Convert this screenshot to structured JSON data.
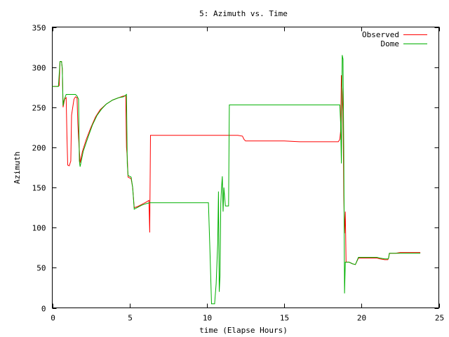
{
  "chart_data": {
    "type": "line",
    "title": "5: Azimuth vs. Time",
    "xlabel": "time (Elapse Hours)",
    "ylabel": "Azimuth",
    "xlim": [
      0,
      25
    ],
    "ylim": [
      0,
      350
    ],
    "xticks": [
      0,
      5,
      10,
      15,
      20,
      25
    ],
    "yticks": [
      0,
      50,
      100,
      150,
      200,
      250,
      300,
      350
    ],
    "grid": false,
    "legend": "top-right",
    "series": [
      {
        "name": "Observed",
        "color": "#ff0000",
        "points": [
          [
            0,
            276
          ],
          [
            0.35,
            276
          ],
          [
            0.45,
            277
          ],
          [
            0.5,
            307
          ],
          [
            0.6,
            307
          ],
          [
            0.65,
            298
          ],
          [
            0.7,
            250
          ],
          [
            0.8,
            260
          ],
          [
            0.9,
            262
          ],
          [
            0.95,
            215
          ],
          [
            1.0,
            178
          ],
          [
            1.1,
            177
          ],
          [
            1.2,
            183
          ],
          [
            1.25,
            240
          ],
          [
            1.4,
            260
          ],
          [
            1.5,
            263
          ],
          [
            1.6,
            262
          ],
          [
            1.65,
            230
          ],
          [
            1.7,
            212
          ],
          [
            1.8,
            181
          ],
          [
            1.95,
            195
          ],
          [
            2.2,
            210
          ],
          [
            2.5,
            225
          ],
          [
            2.8,
            238
          ],
          [
            3.1,
            247
          ],
          [
            3.5,
            254
          ],
          [
            3.9,
            259
          ],
          [
            4.3,
            262
          ],
          [
            4.6,
            264
          ],
          [
            4.75,
            264
          ],
          [
            4.8,
            200
          ],
          [
            4.85,
            188
          ],
          [
            4.9,
            163
          ],
          [
            5.1,
            161
          ],
          [
            5.2,
            150
          ],
          [
            5.3,
            125
          ],
          [
            5.5,
            126
          ],
          [
            5.8,
            129
          ],
          [
            6.1,
            132
          ],
          [
            6.25,
            134
          ],
          [
            6.3,
            94
          ],
          [
            6.35,
            215
          ],
          [
            6.5,
            215
          ],
          [
            8,
            215
          ],
          [
            10,
            215
          ],
          [
            12,
            215
          ],
          [
            12.3,
            214
          ],
          [
            12.4,
            210
          ],
          [
            12.5,
            208
          ],
          [
            13.5,
            208
          ],
          [
            15,
            208
          ],
          [
            16,
            207
          ],
          [
            17,
            207
          ],
          [
            18,
            207
          ],
          [
            18.5,
            207
          ],
          [
            18.6,
            210
          ],
          [
            18.65,
            220
          ],
          [
            18.7,
            290
          ],
          [
            18.75,
            270
          ],
          [
            18.8,
            245
          ],
          [
            18.85,
            140
          ],
          [
            18.9,
            93
          ],
          [
            18.95,
            120
          ],
          [
            19.0,
            57
          ],
          [
            19.2,
            57
          ],
          [
            19.4,
            55
          ],
          [
            19.6,
            54
          ],
          [
            19.65,
            56
          ],
          [
            19.8,
            62
          ],
          [
            20.2,
            62
          ],
          [
            20.5,
            62
          ],
          [
            21,
            62
          ],
          [
            21.2,
            61
          ],
          [
            21.5,
            60
          ],
          [
            21.7,
            60
          ],
          [
            21.75,
            62
          ],
          [
            21.8,
            68
          ],
          [
            22.2,
            68
          ],
          [
            22.5,
            69
          ],
          [
            23,
            69
          ],
          [
            23.8,
            69
          ]
        ]
      },
      {
        "name": "Dome",
        "color": "#00b000",
        "points": [
          [
            0,
            276
          ],
          [
            0.4,
            276
          ],
          [
            0.5,
            307
          ],
          [
            0.6,
            307
          ],
          [
            0.65,
            298
          ],
          [
            0.7,
            252
          ],
          [
            0.75,
            258
          ],
          [
            0.9,
            266
          ],
          [
            1.5,
            266
          ],
          [
            1.6,
            264
          ],
          [
            1.7,
            260
          ],
          [
            1.75,
            183
          ],
          [
            1.8,
            176
          ],
          [
            2.0,
            195
          ],
          [
            2.3,
            212
          ],
          [
            2.6,
            228
          ],
          [
            2.9,
            240
          ],
          [
            3.2,
            248
          ],
          [
            3.5,
            254
          ],
          [
            3.9,
            259
          ],
          [
            4.3,
            262
          ],
          [
            4.6,
            263
          ],
          [
            4.8,
            266
          ],
          [
            4.85,
            180
          ],
          [
            4.9,
            165
          ],
          [
            5.1,
            163
          ],
          [
            5.2,
            150
          ],
          [
            5.3,
            123
          ],
          [
            5.5,
            125
          ],
          [
            5.8,
            128
          ],
          [
            6.1,
            130
          ],
          [
            6.3,
            131
          ],
          [
            7,
            131
          ],
          [
            8.5,
            131
          ],
          [
            9.9,
            131
          ],
          [
            10.1,
            131
          ],
          [
            10.2,
            70
          ],
          [
            10.3,
            5
          ],
          [
            10.5,
            5
          ],
          [
            10.6,
            30
          ],
          [
            10.7,
            80
          ],
          [
            10.75,
            145
          ],
          [
            10.8,
            20
          ],
          [
            10.85,
            40
          ],
          [
            10.9,
            130
          ],
          [
            10.95,
            150
          ],
          [
            11.0,
            164
          ],
          [
            11.05,
            120
          ],
          [
            11.1,
            150
          ],
          [
            11.2,
            127
          ],
          [
            11.4,
            127
          ],
          [
            11.45,
            253
          ],
          [
            12,
            253
          ],
          [
            13,
            253
          ],
          [
            14,
            253
          ],
          [
            15,
            253
          ],
          [
            16,
            253
          ],
          [
            17,
            253
          ],
          [
            18,
            253
          ],
          [
            18.6,
            253
          ],
          [
            18.65,
            230
          ],
          [
            18.7,
            180
          ],
          [
            18.75,
            315
          ],
          [
            18.8,
            310
          ],
          [
            18.85,
            200
          ],
          [
            18.9,
            18
          ],
          [
            18.95,
            57
          ],
          [
            19.2,
            57
          ],
          [
            19.4,
            55
          ],
          [
            19.6,
            54
          ],
          [
            19.65,
            56
          ],
          [
            19.8,
            63
          ],
          [
            20.2,
            63
          ],
          [
            20.5,
            63
          ],
          [
            21,
            63
          ],
          [
            21.2,
            62
          ],
          [
            21.5,
            61
          ],
          [
            21.7,
            61
          ],
          [
            21.75,
            62
          ],
          [
            21.8,
            68
          ],
          [
            22.2,
            68
          ],
          [
            22.5,
            68
          ],
          [
            23,
            68
          ],
          [
            23.8,
            68
          ]
        ]
      }
    ]
  }
}
